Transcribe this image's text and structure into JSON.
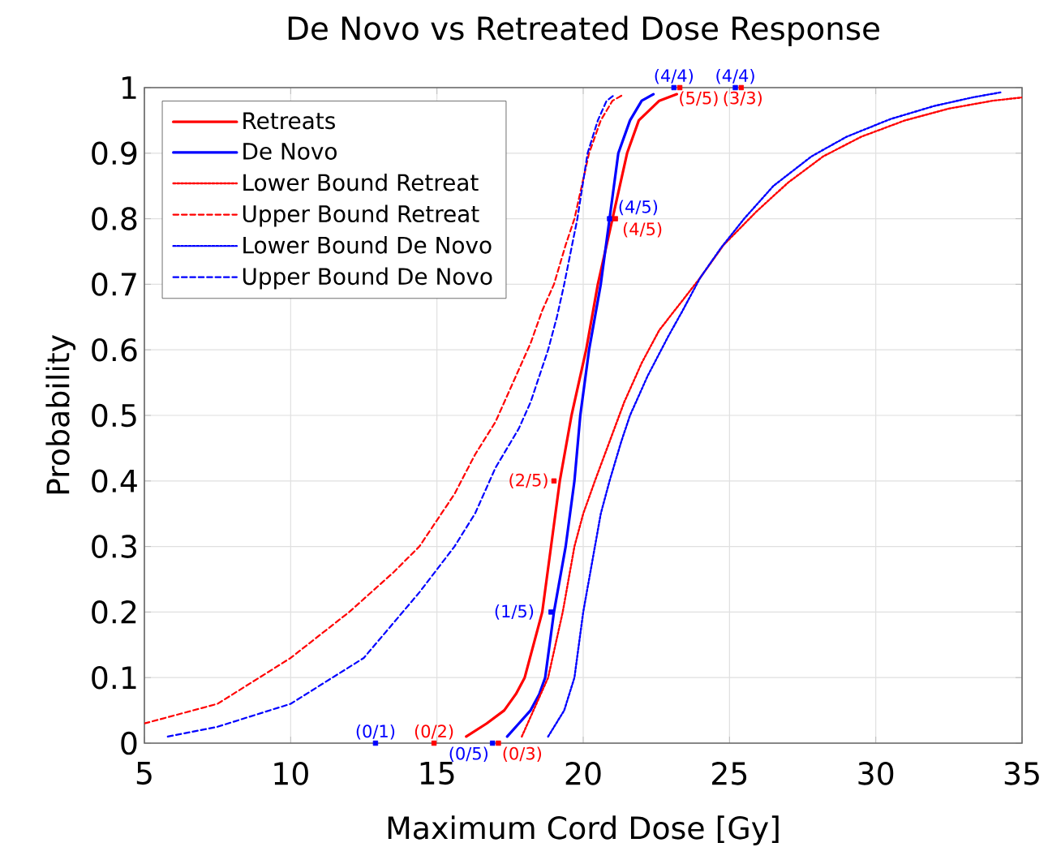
{
  "chart_data": {
    "type": "line",
    "title": "De Novo vs Retreated Dose Response",
    "xlabel": "Maximum Cord Dose [Gy]",
    "ylabel": "Probability",
    "xlim": [
      5,
      35
    ],
    "ylim": [
      0,
      1
    ],
    "xticks": [
      5,
      10,
      15,
      20,
      25,
      30,
      35
    ],
    "yticks": [
      0,
      0.1,
      0.2,
      0.3,
      0.4,
      0.5,
      0.6,
      0.7,
      0.8,
      0.9,
      1
    ],
    "grid": true,
    "legend": "top left",
    "marker": "none",
    "series": [
      {
        "name": "Retreats",
        "color": "#ff0000",
        "line_style": "solid",
        "x": [
          16.0,
          16.7,
          17.3,
          17.7,
          18.0,
          18.6,
          18.9,
          19.2,
          19.6,
          20.1,
          20.5,
          21.0,
          21.5,
          21.9,
          22.6,
          23.2
        ],
        "values": [
          0.01,
          0.03,
          0.05,
          0.075,
          0.1,
          0.2,
          0.3,
          0.4,
          0.5,
          0.6,
          0.7,
          0.8,
          0.9,
          0.95,
          0.98,
          0.99
        ]
      },
      {
        "name": "De Novo",
        "color": "#0000ff",
        "line_style": "solid",
        "x": [
          17.4,
          17.8,
          18.2,
          18.5,
          18.7,
          19.0,
          19.4,
          19.7,
          19.9,
          20.2,
          20.6,
          20.9,
          21.2,
          21.6,
          22.0,
          22.4
        ],
        "values": [
          0.01,
          0.03,
          0.05,
          0.075,
          0.1,
          0.2,
          0.3,
          0.4,
          0.5,
          0.6,
          0.7,
          0.8,
          0.9,
          0.95,
          0.98,
          0.99
        ]
      },
      {
        "name": "Lower Bound Retreat",
        "color": "#ff0000",
        "line_style": "dotted",
        "x": [
          17.9,
          18.3,
          18.8,
          19.3,
          19.7,
          20.0,
          20.4,
          20.9,
          21.4,
          22.0,
          22.6,
          23.3,
          24.0,
          24.8,
          25.9,
          27.0,
          28.2,
          29.5,
          31.0,
          32.5,
          34.0,
          35.0
        ],
        "values": [
          0.01,
          0.05,
          0.1,
          0.2,
          0.3,
          0.35,
          0.4,
          0.46,
          0.52,
          0.58,
          0.63,
          0.67,
          0.71,
          0.76,
          0.81,
          0.855,
          0.895,
          0.925,
          0.95,
          0.968,
          0.98,
          0.985
        ]
      },
      {
        "name": "Upper Bound Retreat",
        "color": "#ff0000",
        "line_style": "dashed",
        "x": [
          5.0,
          7.5,
          10.0,
          12.0,
          13.5,
          14.4,
          15.6,
          16.3,
          17.0,
          17.6,
          18.2,
          18.6,
          19.0,
          19.4,
          19.7,
          20.0,
          20.2,
          20.6,
          21.0,
          21.4
        ],
        "values": [
          0.03,
          0.06,
          0.13,
          0.2,
          0.26,
          0.3,
          0.38,
          0.44,
          0.49,
          0.55,
          0.61,
          0.66,
          0.7,
          0.76,
          0.8,
          0.86,
          0.9,
          0.95,
          0.98,
          0.99
        ]
      },
      {
        "name": "Lower Bound De Novo",
        "color": "#0000ff",
        "line_style": "dotted",
        "x": [
          18.8,
          19.35,
          19.7,
          20.0,
          20.4,
          20.6,
          20.9,
          21.3,
          21.6,
          22.2,
          22.9,
          23.4,
          24.0,
          24.7,
          25.5,
          26.5,
          27.8,
          29.0,
          30.5,
          32.0,
          33.3,
          34.3
        ],
        "values": [
          0.01,
          0.05,
          0.1,
          0.2,
          0.3,
          0.35,
          0.4,
          0.46,
          0.5,
          0.56,
          0.62,
          0.66,
          0.71,
          0.755,
          0.8,
          0.85,
          0.895,
          0.925,
          0.952,
          0.972,
          0.985,
          0.993
        ]
      },
      {
        "name": "Upper Bound De Novo",
        "color": "#0000ff",
        "line_style": "dashed",
        "x": [
          5.8,
          7.5,
          10.0,
          12.5,
          14.4,
          15.6,
          16.3,
          17.0,
          17.8,
          18.2,
          18.8,
          19.1,
          19.35,
          19.8,
          20.15,
          20.5,
          20.8,
          21.1
        ],
        "values": [
          0.01,
          0.025,
          0.06,
          0.13,
          0.23,
          0.3,
          0.35,
          0.42,
          0.48,
          0.52,
          0.6,
          0.65,
          0.7,
          0.8,
          0.9,
          0.95,
          0.98,
          0.99
        ]
      },
      {
        "type": "scatter",
        "color": "#0000ff",
        "marker": "square",
        "x": [
          12.9,
          16.9,
          18.9,
          20.9,
          23.1,
          25.2
        ],
        "values": [
          0,
          0,
          0.2,
          0.8,
          1,
          1
        ],
        "value_labels": [
          "(0/1)",
          "(0/5)",
          "(1/5)",
          "(4/5)",
          "(4/4)",
          "(4/4)"
        ]
      },
      {
        "type": "scatter",
        "color": "#ff0000",
        "marker": "square",
        "x": [
          14.9,
          17.1,
          19.0,
          21.1,
          23.3,
          25.4
        ],
        "values": [
          0,
          0,
          0.4,
          0.8,
          1,
          1
        ],
        "value_labels": [
          "(0/2)",
          "(0/3)",
          "(2/5)",
          "(4/5)",
          "(5/5)",
          "(3/3)"
        ]
      }
    ]
  }
}
